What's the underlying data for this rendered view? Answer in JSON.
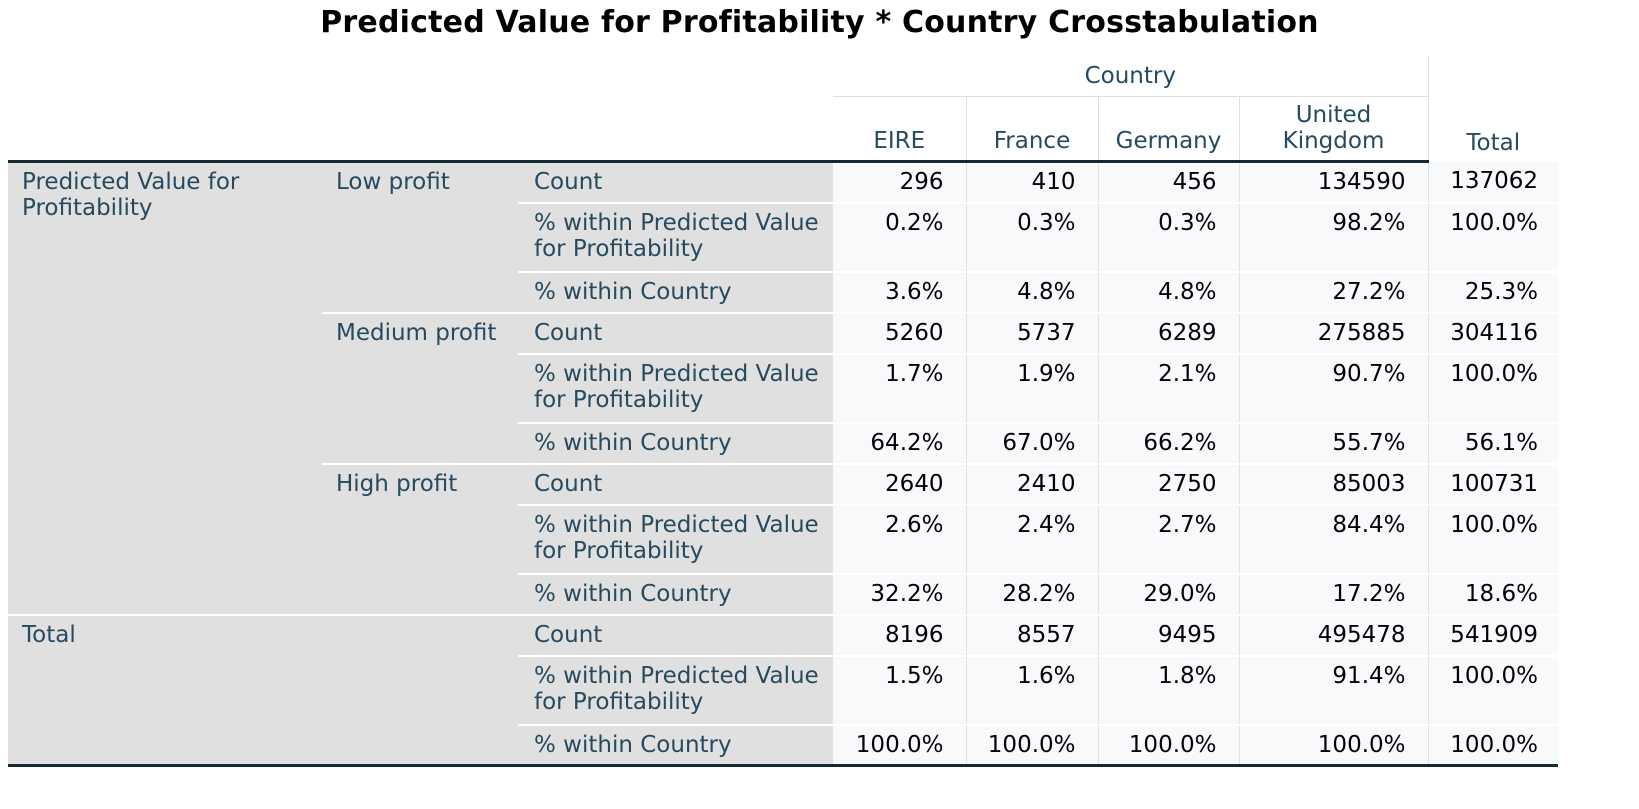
{
  "title": "Predicted Value for Profitability * Country Crosstabulation",
  "header": {
    "group": "Country",
    "columns": [
      "EIRE",
      "France",
      "Germany",
      "United Kingdom",
      "Total"
    ]
  },
  "row_variable": "Predicted Value for Profitability",
  "stat_labels": {
    "count": "Count",
    "within_row": "% within Predicted Value for Profitability",
    "within_col": "% within Country"
  },
  "groups": [
    {
      "label": "Low profit",
      "rows": [
        {
          "values": [
            "296",
            "410",
            "456",
            "134590",
            "137062"
          ]
        },
        {
          "values": [
            "0.2%",
            "0.3%",
            "0.3%",
            "98.2%",
            "100.0%"
          ]
        },
        {
          "values": [
            "3.6%",
            "4.8%",
            "4.8%",
            "27.2%",
            "25.3%"
          ]
        }
      ]
    },
    {
      "label": "Medium profit",
      "rows": [
        {
          "values": [
            "5260",
            "5737",
            "6289",
            "275885",
            "304116"
          ]
        },
        {
          "values": [
            "1.7%",
            "1.9%",
            "2.1%",
            "90.7%",
            "100.0%"
          ]
        },
        {
          "values": [
            "64.2%",
            "67.0%",
            "66.2%",
            "55.7%",
            "56.1%"
          ]
        }
      ]
    },
    {
      "label": "High profit",
      "rows": [
        {
          "values": [
            "2640",
            "2410",
            "2750",
            "85003",
            "100731"
          ]
        },
        {
          "values": [
            "2.6%",
            "2.4%",
            "2.7%",
            "84.4%",
            "100.0%"
          ]
        },
        {
          "values": [
            "32.2%",
            "28.2%",
            "29.0%",
            "17.2%",
            "18.6%"
          ]
        }
      ]
    }
  ],
  "total": {
    "label": "Total",
    "rows": [
      {
        "values": [
          "8196",
          "8557",
          "9495",
          "495478",
          "541909"
        ]
      },
      {
        "values": [
          "1.5%",
          "1.6%",
          "1.8%",
          "91.4%",
          "100.0%"
        ]
      },
      {
        "values": [
          "100.0%",
          "100.0%",
          "100.0%",
          "100.0%",
          "100.0%"
        ]
      }
    ]
  }
}
